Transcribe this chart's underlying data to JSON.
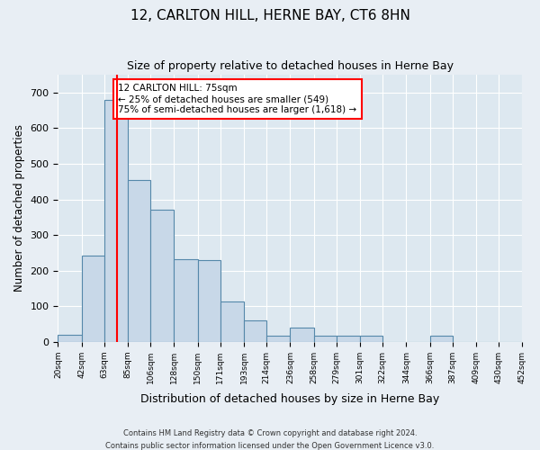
{
  "title": "12, CARLTON HILL, HERNE BAY, CT6 8HN",
  "subtitle": "Size of property relative to detached houses in Herne Bay",
  "xlabel": "Distribution of detached houses by size in Herne Bay",
  "ylabel": "Number of detached properties",
  "bar_color": "#c8d8e8",
  "bar_edge_color": "#5588aa",
  "background_color": "#dde8f0",
  "grid_color": "#ffffff",
  "fig_bg_color": "#e8eef4",
  "property_line_x": 75,
  "property_label": "12 CARLTON HILL: 75sqm",
  "annotation_line1": "← 25% of detached houses are smaller (549)",
  "annotation_line2": "75% of semi-detached houses are larger (1,618) →",
  "bin_edges": [
    20,
    42,
    63,
    85,
    106,
    128,
    150,
    171,
    193,
    214,
    236,
    258,
    279,
    301,
    322,
    344,
    366,
    387,
    409,
    430,
    452
  ],
  "bar_heights": [
    20,
    243,
    680,
    455,
    370,
    233,
    230,
    113,
    60,
    18,
    40,
    18,
    17,
    17,
    0,
    0,
    17,
    0,
    0,
    0
  ],
  "ylim": [
    0,
    750
  ],
  "yticks": [
    0,
    100,
    200,
    300,
    400,
    500,
    600,
    700
  ],
  "footer1": "Contains HM Land Registry data © Crown copyright and database right 2024.",
  "footer2": "Contains public sector information licensed under the Open Government Licence v3.0."
}
